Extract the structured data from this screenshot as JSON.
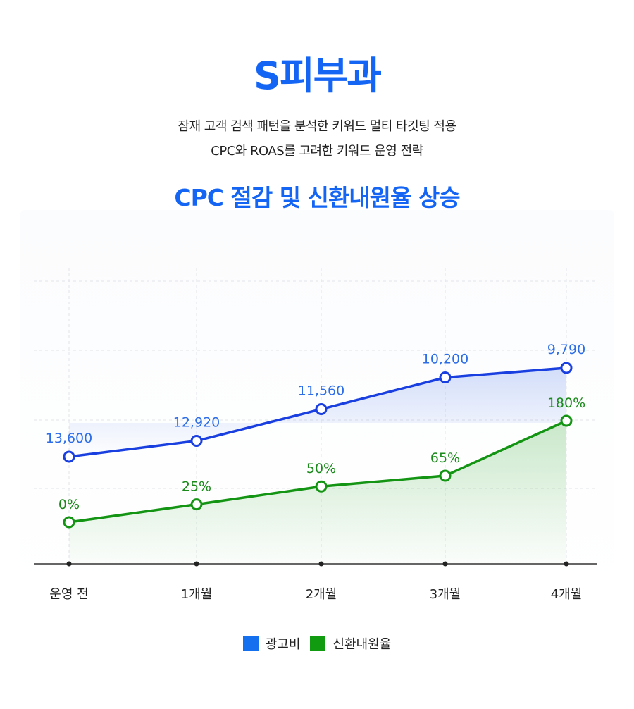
{
  "header": {
    "title": "S피부과",
    "subtitle_line1": "잠재 고객 검색 패턴을 분석한 키워드 멀티 타깃팅 적용",
    "subtitle_line2": "CPC와 ROAS를 고려한 키워드 운영 전략"
  },
  "chart_heading": "CPC 절감 및 신환내원율 상승",
  "colors": {
    "blue": "#1a3fe0",
    "blue_label": "#2d6ee8",
    "green": "#139413",
    "green_label": "#1a8a1a",
    "legend_blue": "#1570f0",
    "legend_green": "#119b11"
  },
  "chart_data": {
    "type": "line",
    "categories": [
      "운영 전",
      "1개월",
      "2개월",
      "3개월",
      "4개월"
    ],
    "series": [
      {
        "name": "광고비",
        "values": [
          13600,
          12920,
          11560,
          10200,
          9790
        ],
        "labels": [
          "13,600",
          "12,920",
          "11,560",
          "10,200",
          "9,790"
        ],
        "color": "#1a3fe0"
      },
      {
        "name": "신환내원율",
        "values": [
          0,
          25,
          50,
          65,
          180
        ],
        "unit": "%",
        "labels": [
          "0%",
          "25%",
          "50%",
          "65%",
          "180%"
        ],
        "color": "#139413"
      }
    ],
    "grid": true,
    "legend_position": "bottom-center"
  },
  "legend": [
    {
      "label": "광고비",
      "color": "#1570f0"
    },
    {
      "label": "신환내원율",
      "color": "#119b11"
    }
  ]
}
